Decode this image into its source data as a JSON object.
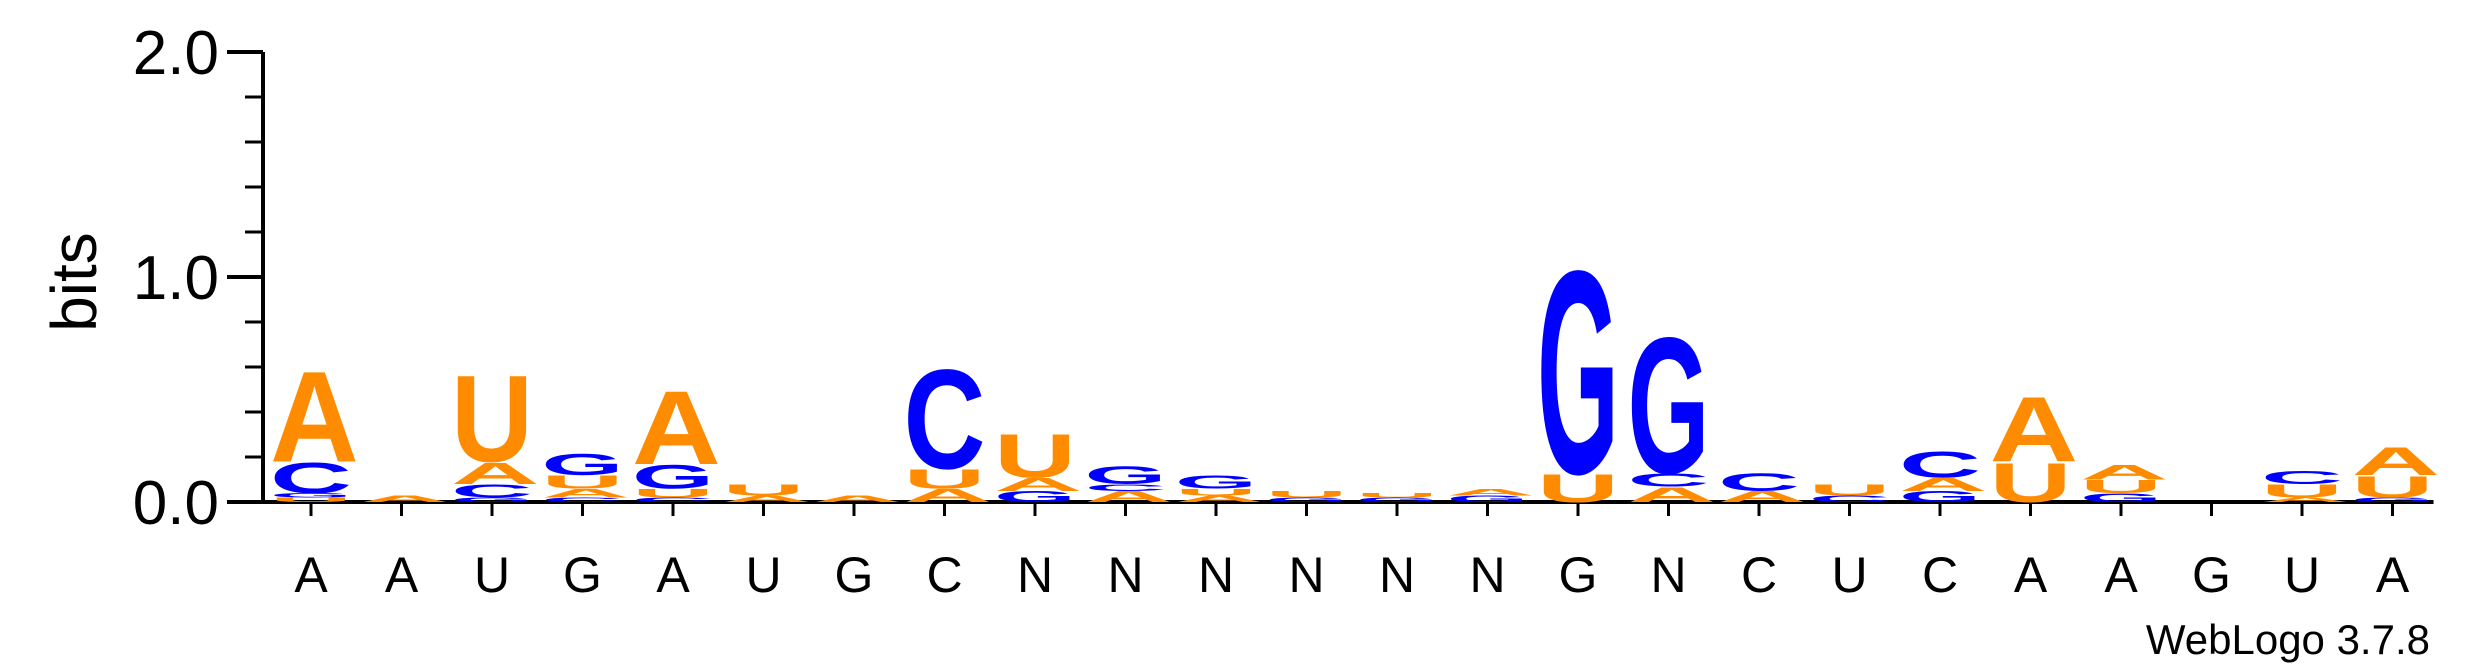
{
  "chart_data": {
    "type": "sequence-logo",
    "ylabel": "bits",
    "ylim": [
      0,
      2.0
    ],
    "yticks": [
      "0.0",
      "1.0",
      "2.0"
    ],
    "ytick_values": [
      0,
      1,
      2
    ],
    "colors": {
      "A": "#ff8c00",
      "U": "#ff8c00",
      "G": "#0000ff",
      "C": "#0000ff"
    },
    "positions": [
      {
        "label": "A",
        "stack": [
          [
            "U",
            0.02
          ],
          [
            "G",
            0.02
          ],
          [
            "C",
            0.14
          ],
          [
            "A",
            0.42
          ]
        ]
      },
      {
        "label": "A",
        "stack": [
          [
            "A",
            0.03
          ]
        ]
      },
      {
        "label": "U",
        "stack": [
          [
            "G",
            0.02
          ],
          [
            "C",
            0.06
          ],
          [
            "A",
            0.1
          ],
          [
            "U",
            0.4
          ]
        ]
      },
      {
        "label": "G",
        "stack": [
          [
            "C",
            0.02
          ],
          [
            "A",
            0.04
          ],
          [
            "U",
            0.06
          ],
          [
            "G",
            0.1
          ]
        ]
      },
      {
        "label": "A",
        "stack": [
          [
            "C",
            0.02
          ],
          [
            "U",
            0.04
          ],
          [
            "G",
            0.11
          ],
          [
            "A",
            0.34
          ]
        ]
      },
      {
        "label": "U",
        "stack": [
          [
            "A",
            0.03
          ],
          [
            "U",
            0.05
          ]
        ]
      },
      {
        "label": "G",
        "stack": [
          [
            "A",
            0.03
          ]
        ]
      },
      {
        "label": "C",
        "stack": [
          [
            "A",
            0.06
          ],
          [
            "U",
            0.09
          ],
          [
            "C",
            0.46
          ]
        ]
      },
      {
        "label": "N",
        "stack": [
          [
            "G",
            0.05
          ],
          [
            "A",
            0.06
          ],
          [
            "U",
            0.2
          ]
        ]
      },
      {
        "label": "N",
        "stack": [
          [
            "A",
            0.05
          ],
          [
            "C",
            0.03
          ],
          [
            "G",
            0.08
          ]
        ]
      },
      {
        "label": "N",
        "stack": [
          [
            "A",
            0.03
          ],
          [
            "U",
            0.03
          ],
          [
            "G",
            0.06
          ]
        ]
      },
      {
        "label": "N",
        "stack": [
          [
            "G",
            0.02
          ],
          [
            "U",
            0.03
          ]
        ]
      },
      {
        "label": "N",
        "stack": [
          [
            "G",
            0.02
          ],
          [
            "U",
            0.02
          ]
        ]
      },
      {
        "label": "N",
        "stack": [
          [
            "G",
            0.03
          ],
          [
            "A",
            0.03
          ]
        ]
      },
      {
        "label": "G",
        "stack": [
          [
            "U",
            0.13
          ],
          [
            "G",
            0.94
          ]
        ]
      },
      {
        "label": "N",
        "stack": [
          [
            "A",
            0.07
          ],
          [
            "C",
            0.06
          ],
          [
            "G",
            0.63
          ]
        ]
      },
      {
        "label": "C",
        "stack": [
          [
            "A",
            0.05
          ],
          [
            "C",
            0.08
          ]
        ]
      },
      {
        "label": "U",
        "stack": [
          [
            "C",
            0.03
          ],
          [
            "U",
            0.05
          ]
        ]
      },
      {
        "label": "C",
        "stack": [
          [
            "G",
            0.05
          ],
          [
            "A",
            0.06
          ],
          [
            "C",
            0.12
          ]
        ]
      },
      {
        "label": "A",
        "stack": [
          [
            "U",
            0.18
          ],
          [
            "A",
            0.3
          ]
        ]
      },
      {
        "label": "A",
        "stack": [
          [
            "G",
            0.04
          ],
          [
            "U",
            0.06
          ],
          [
            "A",
            0.07
          ]
        ]
      },
      {
        "label": "G",
        "stack": []
      },
      {
        "label": "U",
        "stack": [
          [
            "A",
            0.02
          ],
          [
            "U",
            0.06
          ],
          [
            "C",
            0.06
          ]
        ]
      },
      {
        "label": "A",
        "stack": [
          [
            "G",
            0.02
          ],
          [
            "U",
            0.1
          ],
          [
            "A",
            0.13
          ]
        ]
      }
    ]
  },
  "credit": "WebLogo 3.7.8"
}
